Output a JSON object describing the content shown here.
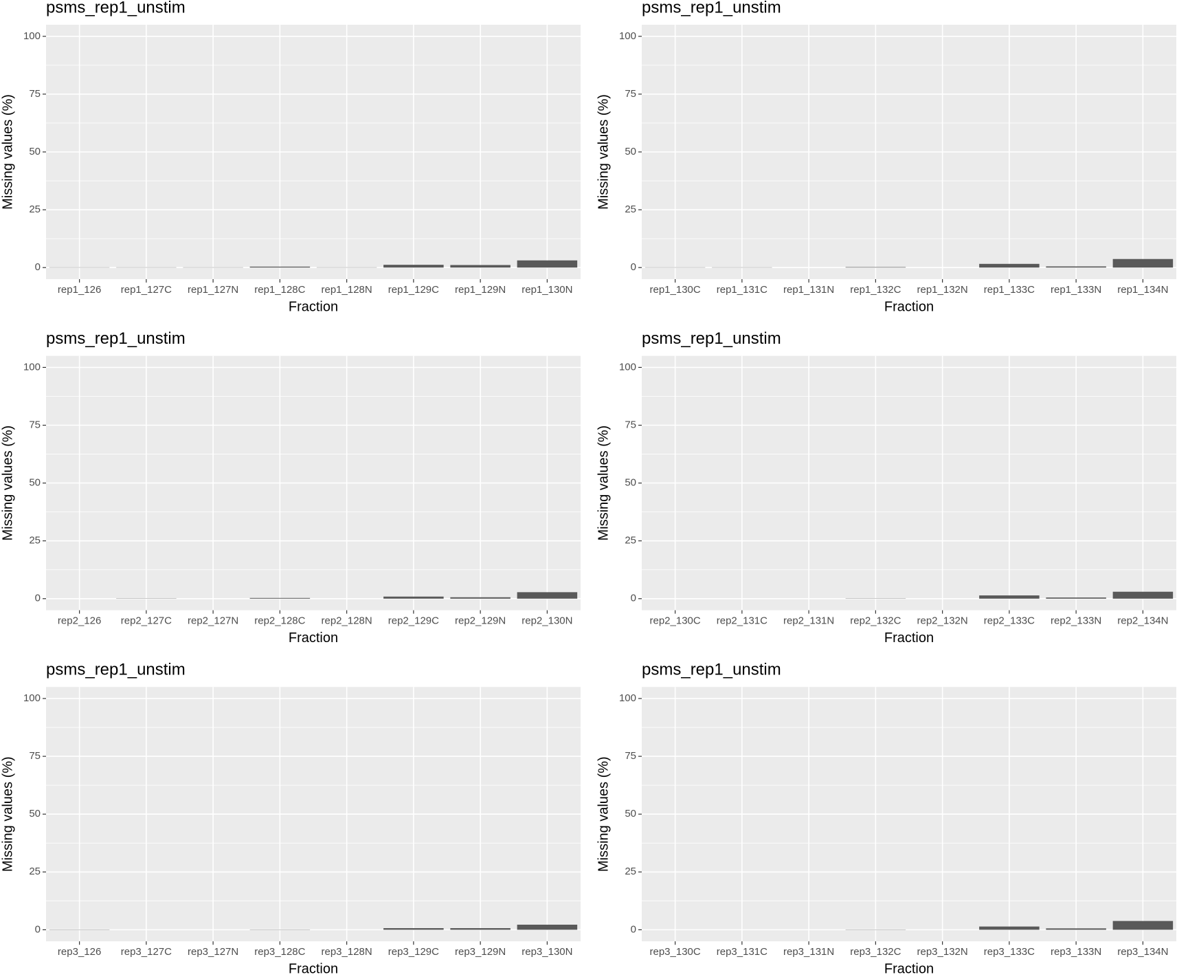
{
  "chart_data": [
    {
      "type": "bar",
      "title": "psms_rep1_unstim",
      "xlabel": "Fraction",
      "ylabel": "Missing values (%)",
      "categories": [
        "rep1_126",
        "rep1_127C",
        "rep1_127N",
        "rep1_128C",
        "rep1_128N",
        "rep1_129C",
        "rep1_129N",
        "rep1_130N"
      ],
      "values": [
        0.1,
        0.1,
        0.1,
        0.4,
        0.1,
        1.2,
        1.1,
        3.1
      ],
      "color": "#595959",
      "ylim": [
        -5,
        105
      ],
      "yticks": [
        0,
        25,
        50,
        75,
        100
      ],
      "grid": true
    },
    {
      "type": "bar",
      "title": "psms_rep1_unstim",
      "xlabel": "Fraction",
      "ylabel": "Missing values (%)",
      "categories": [
        "rep1_130C",
        "rep1_131C",
        "rep1_131N",
        "rep1_132C",
        "rep1_132N",
        "rep1_133C",
        "rep1_133N",
        "rep1_134N"
      ],
      "values": [
        0.1,
        0.1,
        0,
        0.2,
        0,
        1.6,
        0.5,
        3.7
      ],
      "color": "#595959",
      "ylim": [
        -5,
        105
      ],
      "yticks": [
        0,
        25,
        50,
        75,
        100
      ],
      "grid": true
    },
    {
      "type": "bar",
      "title": "psms_rep1_unstim",
      "xlabel": "Fraction",
      "ylabel": "Missing values (%)",
      "categories": [
        "rep2_126",
        "rep2_127C",
        "rep2_127N",
        "rep2_128C",
        "rep2_128N",
        "rep2_129C",
        "rep2_129N",
        "rep2_130N"
      ],
      "values": [
        0,
        0.1,
        0,
        0.3,
        0,
        0.9,
        0.6,
        2.8
      ],
      "color": "#595959",
      "ylim": [
        -5,
        105
      ],
      "yticks": [
        0,
        25,
        50,
        75,
        100
      ],
      "grid": true
    },
    {
      "type": "bar",
      "title": "psms_rep1_unstim",
      "xlabel": "Fraction",
      "ylabel": "Missing values (%)",
      "categories": [
        "rep2_130C",
        "rep2_131C",
        "rep2_131N",
        "rep2_132C",
        "rep2_132N",
        "rep2_133C",
        "rep2_133N",
        "rep2_134N"
      ],
      "values": [
        0,
        0,
        0,
        0.1,
        0,
        1.4,
        0.5,
        3.0
      ],
      "color": "#595959",
      "ylim": [
        -5,
        105
      ],
      "yticks": [
        0,
        25,
        50,
        75,
        100
      ],
      "grid": true
    },
    {
      "type": "bar",
      "title": "psms_rep1_unstim",
      "xlabel": "Fraction",
      "ylabel": "Missing values (%)",
      "categories": [
        "rep3_126",
        "rep3_127C",
        "rep3_127N",
        "rep3_128C",
        "rep3_128N",
        "rep3_129C",
        "rep3_129N",
        "rep3_130N"
      ],
      "values": [
        0.1,
        0,
        0,
        0.1,
        0,
        0.7,
        0.7,
        2.2
      ],
      "color": "#595959",
      "ylim": [
        -5,
        105
      ],
      "yticks": [
        0,
        25,
        50,
        75,
        100
      ],
      "grid": true
    },
    {
      "type": "bar",
      "title": "psms_rep1_unstim",
      "xlabel": "Fraction",
      "ylabel": "Missing values (%)",
      "categories": [
        "rep3_130C",
        "rep3_131C",
        "rep3_131N",
        "rep3_132C",
        "rep3_132N",
        "rep3_133C",
        "rep3_133N",
        "rep3_134N"
      ],
      "values": [
        0,
        0,
        0,
        0.1,
        0,
        1.4,
        0.6,
        3.8
      ],
      "color": "#595959",
      "ylim": [
        -5,
        105
      ],
      "yticks": [
        0,
        25,
        50,
        75,
        100
      ],
      "grid": true
    }
  ]
}
